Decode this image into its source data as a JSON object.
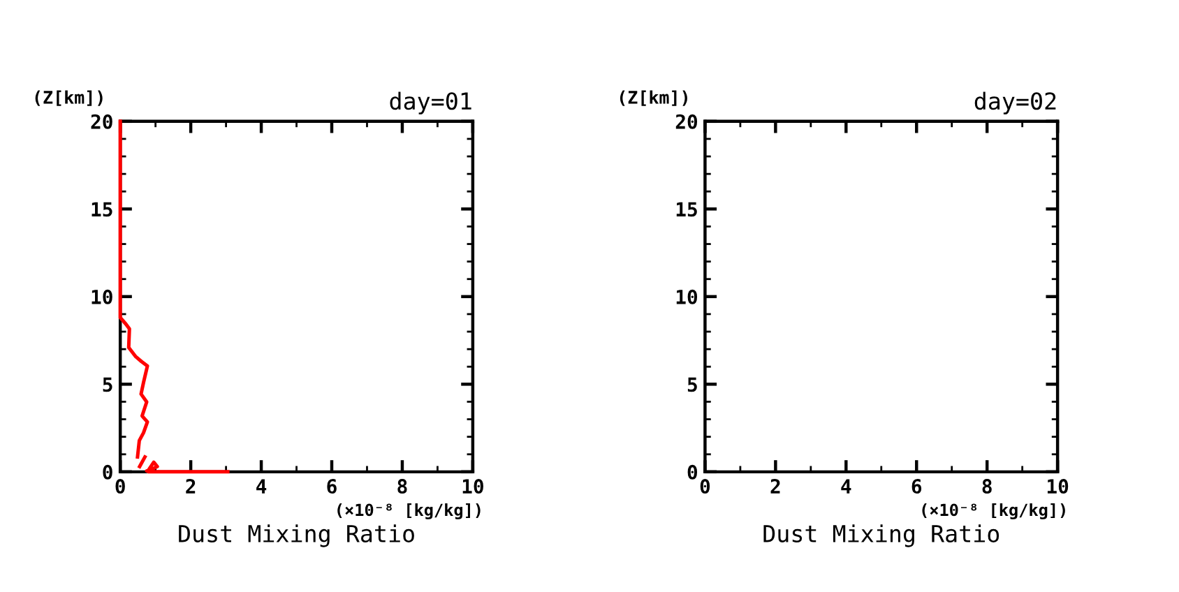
{
  "chart_data": [
    {
      "type": "line",
      "title": "day=01",
      "ylabel": "(Z[km])",
      "xlabel": "Dust Mixing Ratio",
      "annotations": [
        "(×10⁻⁸ [kg/kg])"
      ],
      "xlim": [
        0,
        10
      ],
      "ylim": [
        0,
        20
      ],
      "xticks": [
        0,
        2,
        4,
        6,
        8,
        10
      ],
      "yticks": [
        0,
        5,
        10,
        15,
        20
      ],
      "grid": false,
      "legend": false,
      "series": [
        {
          "color": "#ff0000",
          "x": [
            0,
            0,
            0.16,
            0.26,
            0.24,
            0.44,
            0.6,
            0.77,
            0.66,
            0.59,
            0.75,
            0.62,
            0.77,
            0.66,
            0.54,
            0.49
          ],
          "values": [
            20,
            8.8,
            8.43,
            8.16,
            7.1,
            6.57,
            6.3,
            6.04,
            5.1,
            4.44,
            3.99,
            3.19,
            2.85,
            2.23,
            1.78,
            0.85
          ]
        },
        {
          "color": "#ff0000",
          "x": [
            0.55,
            0.7
          ],
          "values": [
            0.3,
            0.85
          ]
        },
        {
          "color": "#ff0000",
          "x": [
            0.8,
            0.95,
            1.05,
            0.9,
            0.75,
            0.8,
            3.05
          ],
          "values": [
            0.1,
            0.55,
            0.3,
            0.15,
            0.05,
            0,
            0
          ]
        }
      ]
    },
    {
      "type": "line",
      "title": "day=02",
      "ylabel": "(Z[km])",
      "xlabel": "Dust Mixing Ratio",
      "annotations": [
        "(×10⁻⁸ [kg/kg])"
      ],
      "xlim": [
        0,
        10
      ],
      "ylim": [
        0,
        20
      ],
      "xticks": [
        0,
        2,
        4,
        6,
        8,
        10
      ],
      "yticks": [
        0,
        5,
        10,
        15,
        20
      ],
      "grid": false,
      "legend": false
    }
  ]
}
